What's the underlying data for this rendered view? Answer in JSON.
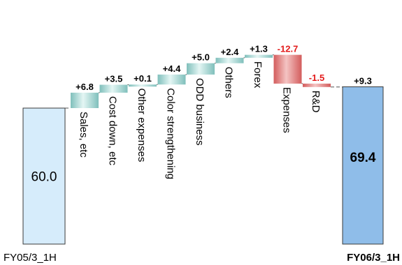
{
  "chart_data": {
    "type": "bar",
    "subtype": "waterfall",
    "title": "",
    "xlabel": "",
    "ylabel": "",
    "grid": false,
    "start": {
      "label": "FY05/3_1H",
      "value": 60.0,
      "value_label": "60.0"
    },
    "end": {
      "label": "FY06/3_1H",
      "value": 69.4,
      "value_label": "69.4",
      "delta_label": "+9.3"
    },
    "steps": [
      {
        "label": "Sales, etc",
        "value": 6.8,
        "value_label": "+6.8"
      },
      {
        "label": "Cost down, etc",
        "value": 3.5,
        "value_label": "+3.5"
      },
      {
        "label": "Other expenses",
        "value": 0.1,
        "value_label": "+0.1"
      },
      {
        "label": "Color strengthening",
        "value": 4.4,
        "value_label": "+4.4"
      },
      {
        "label": "ODD business",
        "value": 5.0,
        "value_label": "+5.0"
      },
      {
        "label": "Others",
        "value": 2.4,
        "value_label": "+2.4"
      },
      {
        "label": "Forex",
        "value": 1.3,
        "value_label": "+1.3"
      },
      {
        "label": "Expenses",
        "value": -12.7,
        "value_label": "-12.7"
      },
      {
        "label": "R&D",
        "value": -1.5,
        "value_label": "-1.5"
      }
    ],
    "colors": {
      "start_fill": "#d6ecfb",
      "end_fill": "#8fbde9",
      "positive_fill": "#9cd6d2",
      "negative_fill": "#e5807f",
      "positive_text": "#000000",
      "negative_text": "#e31b1b"
    }
  }
}
